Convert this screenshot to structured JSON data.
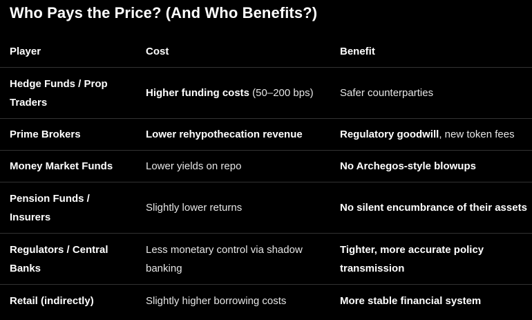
{
  "title": "Who Pays the Price? (And Who Benefits?)",
  "table": {
    "headers": [
      "Player",
      "Cost",
      "Benefit"
    ],
    "rows": [
      {
        "player": "Hedge Funds / Prop Traders",
        "cost_bold": "Higher funding costs",
        "cost_rest": " (50–200 bps)",
        "benefit_bold": "",
        "benefit_rest": "Safer counterparties"
      },
      {
        "player": "Prime Brokers",
        "cost_bold": "Lower rehypothecation revenue",
        "cost_rest": "",
        "benefit_bold": "Regulatory goodwill",
        "benefit_rest": ", new token fees"
      },
      {
        "player": "Money Market Funds",
        "cost_bold": "",
        "cost_rest": "Lower yields on repo",
        "benefit_bold": "No Archegos-style blowups",
        "benefit_rest": ""
      },
      {
        "player": "Pension Funds / Insurers",
        "cost_bold": "",
        "cost_rest": "Slightly lower returns",
        "benefit_bold": "No silent encumbrance of their assets",
        "benefit_rest": ""
      },
      {
        "player": "Regulators / Central Banks",
        "cost_bold": "",
        "cost_rest": "Less monetary control via shadow banking",
        "benefit_bold": "Tighter, more accurate policy transmission",
        "benefit_rest": ""
      },
      {
        "player": "Retail (indirectly)",
        "cost_bold": "",
        "cost_rest": "Slightly higher borrowing costs",
        "benefit_bold": "More stable financial system",
        "benefit_rest": ""
      }
    ]
  }
}
